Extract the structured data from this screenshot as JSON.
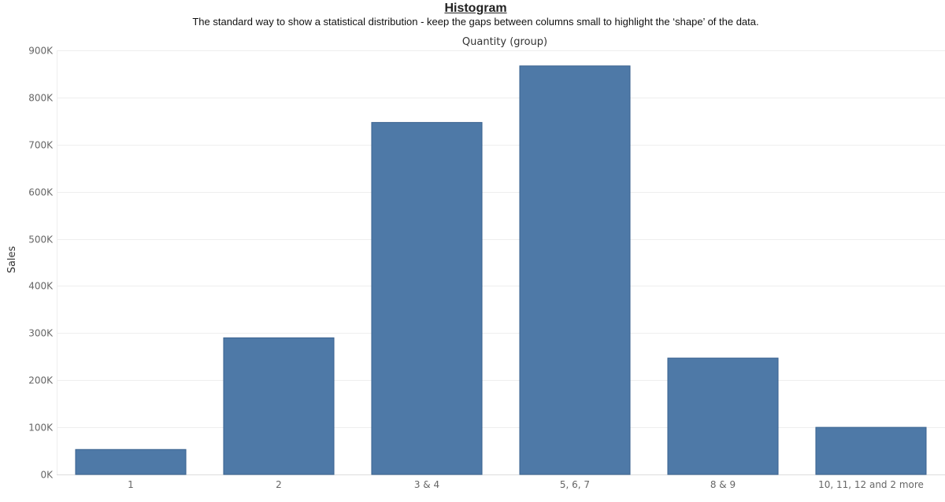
{
  "header": {
    "title": "Histogram",
    "subtitle": "The standard way to show a statistical distribution - keep the gaps between columns small to highlight the ‘shape’ of the data."
  },
  "colors": {
    "bar_fill": "#4e79a7",
    "bar_stroke": "#3b6390",
    "gridline": "#eeeeee",
    "axis_line": "#dddddd"
  },
  "chart_data": {
    "type": "bar",
    "title": "Histogram",
    "subtitle": "The standard way to show a statistical distribution - keep the gaps between columns small to highlight the ‘shape’ of the data.",
    "xlabel": "Quantity (group)",
    "xlabel_position": "top",
    "ylabel": "Sales",
    "categories": [
      "1",
      "2",
      "3 & 4",
      "5, 6, 7",
      "8 & 9",
      "10, 11, 12 and 2 more"
    ],
    "values": [
      53000,
      290000,
      747000,
      867000,
      247000,
      100000
    ],
    "ylim": [
      0,
      900000
    ],
    "yticks": [
      0,
      100000,
      200000,
      300000,
      400000,
      500000,
      600000,
      700000,
      800000,
      900000
    ],
    "ytick_labels": [
      "0K",
      "100K",
      "200K",
      "300K",
      "400K",
      "500K",
      "600K",
      "700K",
      "800K",
      "900K"
    ],
    "grid": true,
    "legend": "none"
  }
}
